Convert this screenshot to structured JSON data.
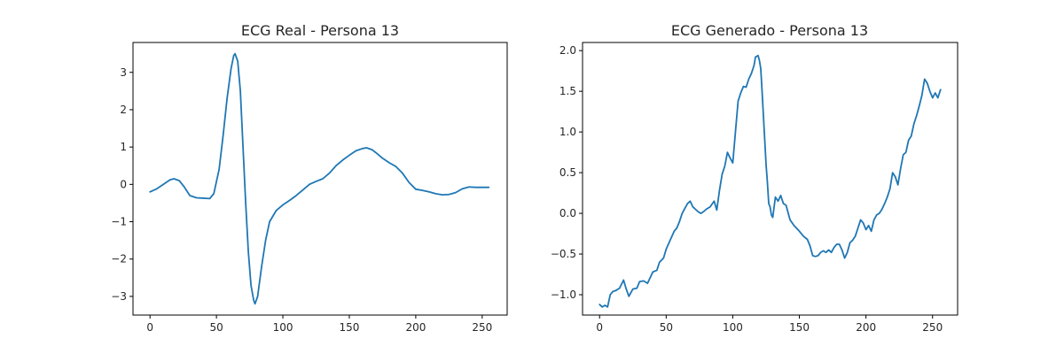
{
  "colors": {
    "line": "#1f77b4",
    "axes": "#000000",
    "text": "#262626"
  },
  "chart_data": [
    {
      "type": "line",
      "title": "ECG Real - Persona 13",
      "xlabel": "",
      "ylabel": "",
      "xlim": [
        -12.8,
        268.8
      ],
      "ylim": [
        -3.5,
        3.8
      ],
      "xticks": [
        0,
        50,
        100,
        150,
        200,
        250
      ],
      "xtick_labels": [
        "0",
        "50",
        "100",
        "150",
        "200",
        "250"
      ],
      "yticks": [
        -3,
        -2,
        -1,
        0,
        1,
        2,
        3
      ],
      "ytick_labels": [
        "−3",
        "−2",
        "−1",
        "0",
        "1",
        "2",
        "3"
      ],
      "grid": false,
      "series": [
        {
          "x": [
            0,
            5,
            10,
            15,
            18,
            22,
            26,
            30,
            35,
            40,
            45,
            48,
            52,
            55,
            58,
            61,
            63,
            64,
            66,
            68,
            70,
            72,
            74,
            76,
            78,
            79,
            81,
            84,
            87,
            90,
            95,
            100,
            105,
            110,
            115,
            120,
            125,
            130,
            135,
            140,
            145,
            150,
            155,
            160,
            163,
            167,
            170,
            175,
            180,
            185,
            190,
            195,
            200,
            205,
            210,
            215,
            220,
            225,
            230,
            235,
            240,
            245,
            250,
            255
          ],
          "y": [
            -0.2,
            -0.12,
            0.0,
            0.12,
            0.15,
            0.1,
            -0.08,
            -0.3,
            -0.36,
            -0.37,
            -0.38,
            -0.25,
            0.4,
            1.3,
            2.3,
            3.1,
            3.45,
            3.5,
            3.3,
            2.5,
            1.0,
            -0.5,
            -1.8,
            -2.7,
            -3.1,
            -3.2,
            -3.0,
            -2.2,
            -1.5,
            -1.0,
            -0.7,
            -0.55,
            -0.43,
            -0.3,
            -0.15,
            0.0,
            0.08,
            0.15,
            0.3,
            0.5,
            0.65,
            0.78,
            0.9,
            0.96,
            0.98,
            0.93,
            0.85,
            0.7,
            0.58,
            0.48,
            0.3,
            0.05,
            -0.13,
            -0.16,
            -0.2,
            -0.25,
            -0.28,
            -0.27,
            -0.22,
            -0.12,
            -0.07,
            -0.08,
            -0.08,
            -0.08
          ]
        }
      ]
    },
    {
      "type": "line",
      "title": "ECG Generado - Persona 13",
      "xlabel": "",
      "ylabel": "",
      "xlim": [
        -12.8,
        268.8
      ],
      "ylim": [
        -1.25,
        2.1
      ],
      "xticks": [
        0,
        50,
        100,
        150,
        200,
        250
      ],
      "xtick_labels": [
        "0",
        "50",
        "100",
        "150",
        "200",
        "250"
      ],
      "yticks": [
        -1.0,
        -0.5,
        0.0,
        0.5,
        1.0,
        1.5,
        2.0
      ],
      "ytick_labels": [
        "−1.0",
        "−0.5",
        "0.0",
        "0.5",
        "1.0",
        "1.5",
        "2.0"
      ],
      "grid": false,
      "series": [
        {
          "x": [
            0,
            2,
            4,
            6,
            8,
            10,
            12,
            15,
            18,
            20,
            22,
            25,
            28,
            30,
            33,
            36,
            40,
            43,
            45,
            48,
            50,
            53,
            56,
            58,
            60,
            62,
            64,
            66,
            68,
            70,
            72,
            74,
            76,
            78,
            80,
            83,
            86,
            88,
            90,
            92,
            94,
            96,
            98,
            100,
            102,
            104,
            106,
            108,
            110,
            112,
            114,
            116,
            117,
            118,
            119,
            120,
            121,
            122,
            123,
            124,
            125,
            126,
            127,
            128,
            129,
            130,
            132,
            134,
            136,
            138,
            140,
            143,
            146,
            150,
            153,
            156,
            158,
            160,
            162,
            164,
            166,
            168,
            170,
            172,
            174,
            176,
            178,
            180,
            182,
            184,
            186,
            188,
            190,
            192,
            194,
            196,
            198,
            200,
            202,
            204,
            206,
            208,
            210,
            212,
            214,
            216,
            218,
            220,
            222,
            224,
            226,
            228,
            230,
            232,
            234,
            236,
            238,
            240,
            242,
            244,
            246,
            248,
            250,
            252,
            254,
            256
          ],
          "y": [
            -1.12,
            -1.15,
            -1.13,
            -1.15,
            -1.0,
            -0.96,
            -0.95,
            -0.92,
            -0.82,
            -0.93,
            -1.02,
            -0.93,
            -0.92,
            -0.84,
            -0.83,
            -0.86,
            -0.72,
            -0.7,
            -0.6,
            -0.55,
            -0.44,
            -0.33,
            -0.22,
            -0.18,
            -0.1,
            0.0,
            0.06,
            0.12,
            0.15,
            0.08,
            0.05,
            0.02,
            0.0,
            0.02,
            0.05,
            0.08,
            0.15,
            0.04,
            0.28,
            0.48,
            0.58,
            0.75,
            0.68,
            0.62,
            1.0,
            1.38,
            1.48,
            1.56,
            1.55,
            1.65,
            1.72,
            1.82,
            1.92,
            1.93,
            1.94,
            1.88,
            1.78,
            1.5,
            1.2,
            0.9,
            0.6,
            0.38,
            0.12,
            0.08,
            -0.02,
            -0.05,
            0.2,
            0.15,
            0.22,
            0.12,
            0.1,
            -0.08,
            -0.15,
            -0.22,
            -0.28,
            -0.32,
            -0.4,
            -0.52,
            -0.53,
            -0.52,
            -0.48,
            -0.46,
            -0.48,
            -0.45,
            -0.48,
            -0.42,
            -0.38,
            -0.38,
            -0.45,
            -0.55,
            -0.48,
            -0.36,
            -0.33,
            -0.28,
            -0.18,
            -0.08,
            -0.12,
            -0.2,
            -0.15,
            -0.22,
            -0.08,
            -0.02,
            0.0,
            0.05,
            0.12,
            0.2,
            0.3,
            0.5,
            0.45,
            0.35,
            0.55,
            0.72,
            0.75,
            0.9,
            0.95,
            1.1,
            1.2,
            1.32,
            1.45,
            1.65,
            1.6,
            1.5,
            1.42,
            1.48,
            1.42,
            1.52
          ]
        }
      ]
    }
  ]
}
